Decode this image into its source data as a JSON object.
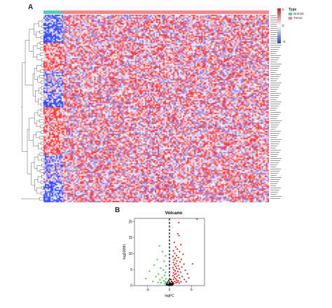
{
  "panel_a": {
    "letter": "A",
    "legend": {
      "title": "Type",
      "items": [
        {
          "label": "Normal",
          "color": "#5ecbb0"
        },
        {
          "label": "Tumor",
          "color": "#f08a8a"
        }
      ],
      "scale_ticks": [
        "5",
        "0",
        "-5"
      ],
      "scale_colors": {
        "high": "#c51b1b",
        "mid": "#ffffff",
        "low": "#2b3fb5"
      }
    },
    "heatmap": {
      "normal_fraction": 0.085,
      "colors": {
        "normal": "#5ecbb0",
        "tumor": "#f08a8a"
      }
    }
  },
  "panel_b": {
    "letter": "B",
    "chart_data": {
      "type": "scatter",
      "title": "Volcano",
      "xlabel": "logFC",
      "ylabel": "-log10(fdr)",
      "xlim": [
        -8,
        8
      ],
      "ylim": [
        0,
        21
      ],
      "xticks": [
        -5,
        0,
        5
      ],
      "yticks": [
        0,
        5,
        10,
        15,
        20
      ],
      "threshold_x": 0,
      "series": [
        {
          "color": "#e32626",
          "points": [
            [
              6.3,
              20.8
            ],
            [
              2.1,
              19.7
            ],
            [
              1.9,
              16.2
            ],
            [
              2.2,
              15.6
            ],
            [
              1.1,
              13.5
            ],
            [
              2.6,
              12.8
            ],
            [
              1.4,
              12.1
            ],
            [
              1.8,
              11.4
            ],
            [
              0.9,
              10.9
            ],
            [
              2.3,
              10.6
            ],
            [
              1.2,
              10.1
            ],
            [
              3.1,
              9.8
            ],
            [
              1.6,
              9.4
            ],
            [
              0.8,
              9.1
            ],
            [
              2.0,
              8.8
            ],
            [
              1.3,
              8.5
            ],
            [
              2.7,
              8.2
            ],
            [
              1.0,
              8.0
            ],
            [
              1.7,
              7.7
            ],
            [
              2.4,
              7.4
            ],
            [
              0.9,
              7.2
            ],
            [
              1.5,
              6.9
            ],
            [
              3.3,
              6.7
            ],
            [
              1.1,
              6.5
            ],
            [
              2.0,
              6.2
            ],
            [
              1.4,
              6.0
            ],
            [
              2.8,
              5.8
            ],
            [
              0.8,
              5.6
            ],
            [
              1.6,
              5.4
            ],
            [
              2.2,
              5.2
            ],
            [
              1.0,
              5.0
            ],
            [
              3.6,
              4.8
            ],
            [
              1.3,
              4.6
            ],
            [
              1.9,
              4.4
            ],
            [
              2.5,
              4.2
            ],
            [
              0.9,
              4.0
            ],
            [
              1.5,
              3.8
            ],
            [
              4.1,
              3.7
            ],
            [
              1.2,
              3.5
            ],
            [
              2.1,
              3.3
            ],
            [
              0.8,
              3.1
            ],
            [
              1.7,
              2.9
            ],
            [
              2.9,
              2.8
            ],
            [
              1.1,
              2.6
            ],
            [
              2.3,
              2.4
            ],
            [
              1.4,
              2.2
            ],
            [
              0.9,
              2.0
            ],
            [
              3.4,
              1.9
            ],
            [
              1.6,
              1.7
            ],
            [
              2.0,
              1.5
            ],
            [
              1.2,
              1.3
            ],
            [
              2.6,
              1.2
            ],
            [
              0.8,
              1.0
            ],
            [
              1.5,
              0.9
            ],
            [
              4.4,
              2.4
            ],
            [
              5.3,
              6.8
            ],
            [
              3.8,
              1.2
            ],
            [
              1.8,
              1.1
            ],
            [
              1.0,
              0.7
            ],
            [
              2.2,
              0.8
            ]
          ]
        },
        {
          "color": "#3ec93e",
          "points": [
            [
              -2.3,
              12.4
            ],
            [
              -1.6,
              10.6
            ],
            [
              -0.9,
              9.3
            ],
            [
              -2.8,
              8.1
            ],
            [
              -1.2,
              7.6
            ],
            [
              -3.5,
              6.4
            ],
            [
              -0.8,
              6.1
            ],
            [
              -2.0,
              5.5
            ],
            [
              -1.4,
              4.9
            ],
            [
              -4.6,
              4.5
            ],
            [
              -0.9,
              4.1
            ],
            [
              -2.5,
              3.6
            ],
            [
              -1.1,
              3.2
            ],
            [
              -3.1,
              2.8
            ],
            [
              -1.7,
              2.5
            ],
            [
              -0.8,
              2.1
            ],
            [
              -2.2,
              1.8
            ],
            [
              -1.3,
              1.5
            ],
            [
              -3.8,
              1.3
            ],
            [
              -0.9,
              1.1
            ],
            [
              -1.9,
              0.9
            ],
            [
              -5.4,
              2.2
            ],
            [
              -2.6,
              1.0
            ],
            [
              -1.0,
              0.6
            ]
          ]
        },
        {
          "color": "#111111",
          "points": [
            [
              0.3,
              1.9
            ],
            [
              -0.2,
              1.6
            ],
            [
              0.5,
              1.3
            ],
            [
              -0.4,
              1.1
            ],
            [
              0.1,
              0.9
            ],
            [
              0.6,
              0.8
            ],
            [
              -0.6,
              0.7
            ],
            [
              0.2,
              0.6
            ],
            [
              -0.1,
              0.5
            ],
            [
              0.4,
              0.5
            ],
            [
              -0.3,
              0.4
            ],
            [
              0.0,
              0.3
            ],
            [
              0.7,
              0.3
            ],
            [
              -0.5,
              0.2
            ],
            [
              0.3,
              0.2
            ],
            [
              -0.2,
              0.1
            ],
            [
              0.5,
              0.1
            ],
            [
              0.1,
              0.1
            ],
            [
              -0.7,
              0.3
            ],
            [
              0.8,
              0.5
            ]
          ]
        }
      ]
    }
  }
}
